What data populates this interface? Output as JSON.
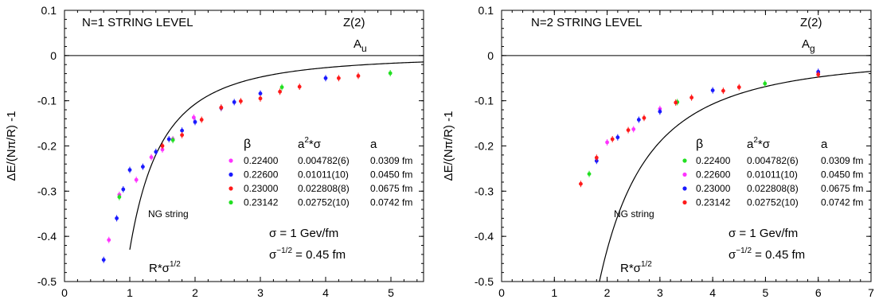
{
  "chart_data": [
    {
      "type": "scatter",
      "panel_label": "N=1 STRING LEVEL",
      "group": "Z(2)",
      "irrep": {
        "base": "A",
        "sub": "u"
      },
      "ylabel": "ΔE/(Nπ/R) -1",
      "xlabel": {
        "base": "R*σ",
        "sup": "1/2"
      },
      "xlim": [
        0,
        5.5
      ],
      "ylim": [
        -0.5,
        0.1
      ],
      "xticks": [
        0,
        1,
        2,
        3,
        4,
        5
      ],
      "yticks": [
        0.1,
        0,
        -0.1,
        -0.2,
        -0.3,
        -0.4,
        -0.5
      ],
      "ytick_labels": [
        "0.1",
        "0",
        "-0.1",
        "-0.2",
        "-0.3",
        "-0.4",
        "-0.5"
      ],
      "grid": false,
      "zero_line": true,
      "legend": {
        "headers": {
          "beta": "β",
          "a2sigma_base": "a",
          "a2sigma_sup": "2",
          "a2sigma_rest": "*σ",
          "a": "a"
        },
        "rows": [
          {
            "beta": "0.22400",
            "a2sigma": "0.004782(6)",
            "a": "0.0309 fm",
            "color": "#ff33ff"
          },
          {
            "beta": "0.22600",
            "a2sigma": "0.01011(10)",
            "a": "0.0450 fm",
            "color": "#1a1aff"
          },
          {
            "beta": "0.23000",
            "a2sigma": "0.022808(8)",
            "a": "0.0675 fm",
            "color": "#ff1a1a"
          },
          {
            "beta": "0.23142",
            "a2sigma": "0.02752(10)",
            "a": "0.0742 fm",
            "color": "#22e022"
          }
        ]
      },
      "curve": {
        "label": "NG string",
        "x_start": 1.0,
        "x_end": 5.5
      },
      "annotations": {
        "sigma": "σ = 1 Gev/fm",
        "sigma_half_base": "σ",
        "sigma_half_sup": "−1/2",
        "sigma_half_rest": " = 0.45 fm"
      },
      "series": [
        {
          "color": "#ff33ff",
          "points": [
            [
              0.68,
              -0.408
            ],
            [
              0.84,
              -0.308
            ],
            [
              1.1,
              -0.275
            ],
            [
              1.33,
              -0.225
            ],
            [
              1.5,
              -0.208
            ],
            [
              1.66,
              -0.185
            ],
            [
              1.98,
              -0.137
            ]
          ]
        },
        {
          "color": "#1a1aff",
          "points": [
            [
              0.6,
              -0.452
            ],
            [
              0.8,
              -0.36
            ],
            [
              0.9,
              -0.296
            ],
            [
              1.0,
              -0.253
            ],
            [
              1.2,
              -0.246
            ],
            [
              1.4,
              -0.213
            ],
            [
              1.6,
              -0.185
            ],
            [
              1.8,
              -0.166
            ],
            [
              2.0,
              -0.147
            ],
            [
              2.4,
              -0.116
            ],
            [
              2.6,
              -0.103
            ],
            [
              3.0,
              -0.084
            ],
            [
              4.0,
              -0.05
            ]
          ]
        },
        {
          "color": "#ff1a1a",
          "points": [
            [
              1.5,
              -0.2
            ],
            [
              1.8,
              -0.176
            ],
            [
              2.1,
              -0.142
            ],
            [
              2.4,
              -0.115
            ],
            [
              2.7,
              -0.101
            ],
            [
              3.0,
              -0.095
            ],
            [
              3.3,
              -0.08
            ],
            [
              3.6,
              -0.069
            ],
            [
              4.2,
              -0.05
            ],
            [
              4.5,
              -0.045
            ]
          ]
        },
        {
          "color": "#22e022",
          "points": [
            [
              0.84,
              -0.313
            ],
            [
              1.66,
              -0.187
            ],
            [
              3.33,
              -0.07
            ],
            [
              4.99,
              -0.039
            ]
          ]
        }
      ]
    },
    {
      "type": "scatter",
      "panel_label": "N=2 STRING LEVEL",
      "group": "Z(2)",
      "irrep": {
        "base": "A",
        "sub": "g"
      },
      "ylabel": "ΔE/(Nπ/R) -1",
      "xlabel": {
        "base": "R*σ",
        "sup": "1/2"
      },
      "xlim": [
        0,
        7
      ],
      "ylim": [
        -0.5,
        0.1
      ],
      "xticks": [
        0,
        1,
        2,
        3,
        4,
        5,
        6,
        7
      ],
      "yticks": [
        0.1,
        0,
        -0.1,
        -0.2,
        -0.3,
        -0.4,
        -0.5
      ],
      "ytick_labels": [
        "0.1",
        "0",
        "-0.1",
        "-0.2",
        "-0.3",
        "-0.4",
        "-0.5"
      ],
      "grid": false,
      "zero_line": true,
      "legend": {
        "headers": {
          "beta": "β",
          "a2sigma_base": "a",
          "a2sigma_sup": "2",
          "a2sigma_rest": "*σ",
          "a": "a"
        },
        "rows": [
          {
            "beta": "0.22400",
            "a2sigma": "0.004782(6)",
            "a": "0.0309 fm",
            "color": "#22e022"
          },
          {
            "beta": "0.22600",
            "a2sigma": "0.01011(10)",
            "a": "0.0450 fm",
            "color": "#ff33ff"
          },
          {
            "beta": "0.23000",
            "a2sigma": "0.022808(8)",
            "a": "0.0675 fm",
            "color": "#1a1aff"
          },
          {
            "beta": "0.23142",
            "a2sigma": "0.02752(10)",
            "a": "0.0742 fm",
            "color": "#ff1a1a"
          }
        ]
      },
      "curve": {
        "label": "NG string",
        "x_start": 1.25,
        "x_end": 7.0
      },
      "annotations": {
        "sigma": "σ = 1 Gev/fm",
        "sigma_half_base": "σ",
        "sigma_half_sup": "−1/2",
        "sigma_half_rest": " = 0.45 fm"
      },
      "series": [
        {
          "color": "#22e022",
          "points": [
            [
              1.66,
              -0.262
            ],
            [
              3.33,
              -0.103
            ],
            [
              4.99,
              -0.062
            ]
          ]
        },
        {
          "color": "#ff33ff",
          "points": [
            [
              2.0,
              -0.192
            ],
            [
              2.5,
              -0.163
            ],
            [
              3.0,
              -0.118
            ],
            [
              6.0,
              -0.038
            ]
          ]
        },
        {
          "color": "#1a1aff",
          "points": [
            [
              1.8,
              -0.233
            ],
            [
              2.2,
              -0.181
            ],
            [
              2.6,
              -0.142
            ],
            [
              3.0,
              -0.124
            ],
            [
              4.0,
              -0.077
            ],
            [
              6.0,
              -0.036
            ]
          ]
        },
        {
          "color": "#ff1a1a",
          "points": [
            [
              1.5,
              -0.284
            ],
            [
              1.8,
              -0.226
            ],
            [
              2.1,
              -0.185
            ],
            [
              2.4,
              -0.165
            ],
            [
              2.7,
              -0.138
            ],
            [
              3.3,
              -0.104
            ],
            [
              3.6,
              -0.093
            ],
            [
              4.2,
              -0.078
            ],
            [
              4.5,
              -0.07
            ],
            [
              6.0,
              -0.042
            ]
          ]
        }
      ]
    }
  ]
}
